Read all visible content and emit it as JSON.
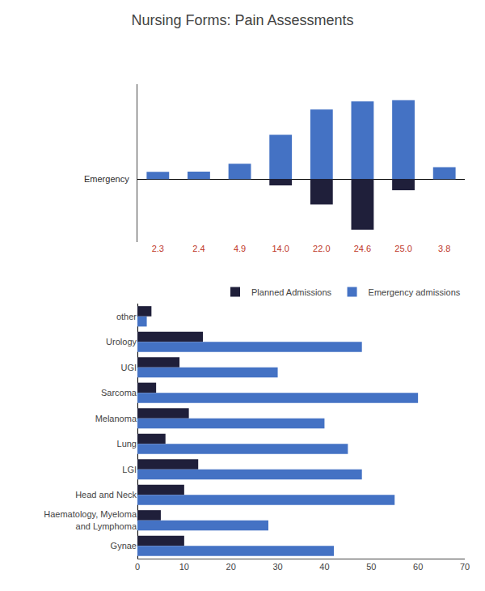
{
  "title": "Nursing Forms: Pain Assessments",
  "chart_data": [
    {
      "type": "bar",
      "categories": [
        "2.3",
        "2.4",
        "4.9",
        "14.0",
        "22.0",
        "24.6",
        "25.0",
        "3.8"
      ],
      "series": [
        {
          "color": "#4472C4",
          "values": [
            2.3,
            2.4,
            4.9,
            14.0,
            22.0,
            24.6,
            25.0,
            3.8
          ]
        },
        {
          "color": "#1F1F3A",
          "values": [
            0,
            0,
            0,
            -2.0,
            -8.0,
            -16.0,
            -3.5,
            0
          ]
        }
      ],
      "ylim": [
        -20,
        30
      ],
      "tick_labels": "x",
      "grid": false,
      "annotations": [
        {
          "text": "Emergency",
          "y": 0
        }
      ]
    },
    {
      "type": "bar",
      "orientation": "horizontal",
      "categories": [
        "other",
        "Urology",
        "UGI",
        "Sarcoma",
        "Melanoma",
        "Lung",
        "LGI",
        "Head and Neck",
        "Haematology, Myeloma\nand Lymphoma",
        "Gynae"
      ],
      "series": [
        {
          "name": "Planned Admissions",
          "color": "#1F1F3A",
          "values": [
            3,
            14,
            9,
            4,
            11,
            6,
            13,
            10,
            5,
            10
          ]
        },
        {
          "name": "Emergency admissions",
          "color": "#4472C4",
          "values": [
            2,
            48,
            30,
            60,
            40,
            45,
            48,
            55,
            28,
            42
          ]
        }
      ],
      "xlim": [
        0,
        70
      ],
      "xticks": [
        0,
        10,
        20,
        30,
        40,
        50,
        60,
        70
      ],
      "grid": false,
      "legend": "upper right"
    }
  ]
}
